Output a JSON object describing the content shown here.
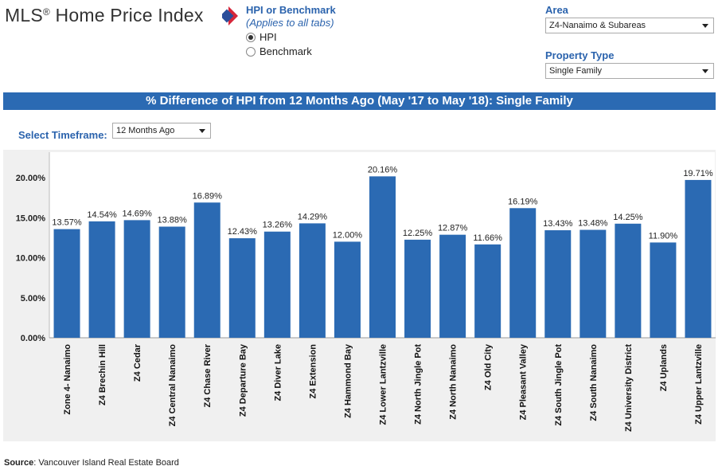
{
  "header": {
    "title": "MLS",
    "title_reg": "®",
    "title_rest": " Home Price Index",
    "hpi_heading": "HPI or Benchmark",
    "hpi_sub": "(Applies to all tabs)",
    "radio_hpi": "HPI",
    "radio_benchmark": "Benchmark",
    "area_label": "Area",
    "area_value": "Z4-Nanaimo & Subareas",
    "property_label": "Property Type",
    "property_value": "Single Family"
  },
  "banner": "% Difference of HPI from 12 Months Ago (May '17 to May '18): Single Family",
  "timeframe": {
    "label": "Select Timeframe:",
    "value": "12 Months Ago"
  },
  "colors": {
    "bar": "#2b6ab3",
    "accent": "#2b63ad"
  },
  "chart_data": {
    "type": "bar",
    "title": "% Difference of HPI from 12 Months Ago (May '17 to May '18): Single Family",
    "categories": [
      "Zone 4- Nanaimo",
      "Z4 Brechin Hill",
      "Z4 Cedar",
      "Z4 Central Nanaimo",
      "Z4 Chase River",
      "Z4 Departure Bay",
      "Z4 Diver Lake",
      "Z4 Extension",
      "Z4 Hammond Bay",
      "Z4 Lower Lantzville",
      "Z4 North Jingle Pot",
      "Z4 North Nanaimo",
      "Z4 Old City",
      "Z4 Pleasant Valley",
      "Z4 South Jingle Pot",
      "Z4 South Nanaimo",
      "Z4 University District",
      "Z4 Uplands",
      "Z4 Upper Lantzville"
    ],
    "values": [
      13.57,
      14.54,
      14.69,
      13.88,
      16.89,
      12.43,
      13.26,
      14.29,
      12.0,
      20.16,
      12.25,
      12.87,
      11.66,
      16.19,
      13.43,
      13.48,
      14.25,
      11.9,
      19.71
    ],
    "labels": [
      "13.57%",
      "14.54%",
      "14.69%",
      "13.88%",
      "16.89%",
      "12.43%",
      "13.26%",
      "14.29%",
      "12.00%",
      "20.16%",
      "12.25%",
      "12.87%",
      "11.66%",
      "16.19%",
      "13.43%",
      "13.48%",
      "14.25%",
      "11.90%",
      "19.71%"
    ],
    "yticks": [
      "20.00%",
      "15.00%",
      "10.00%",
      "5.00%",
      "0.00%"
    ],
    "ytick_values": [
      20,
      15,
      10,
      5,
      0
    ],
    "ylim": [
      0,
      22.5
    ],
    "grid": false,
    "legend": "none"
  },
  "source": {
    "label": "Source",
    "text": ": Vancouver Island Real Estate Board"
  }
}
